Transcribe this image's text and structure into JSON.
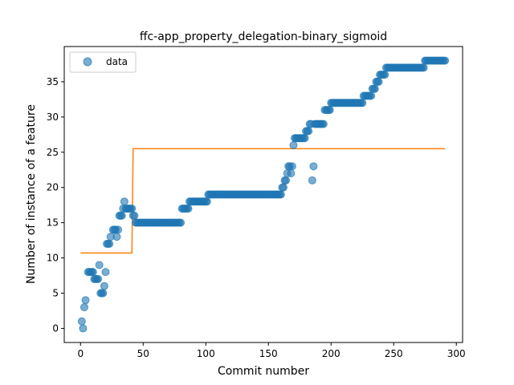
{
  "chart_data": {
    "type": "scatter",
    "title": "ffc-app_property_delegation-binary_sigmoid",
    "xlabel": "Commit number",
    "ylabel": "Number of instance of a feature",
    "xlim": [
      -13,
      305
    ],
    "ylim": [
      -2,
      40
    ],
    "xticks": [
      0,
      50,
      100,
      150,
      200,
      250,
      300
    ],
    "yticks": [
      0,
      5,
      10,
      15,
      20,
      25,
      30,
      35
    ],
    "grid": false,
    "legend": {
      "placement": "top-left",
      "entries": [
        "data"
      ]
    },
    "colors": {
      "data": "#1f77b4",
      "fit": "#ff7f0e"
    },
    "series": [
      {
        "name": "data",
        "kind": "scatter",
        "segments": [
          [
            1,
            1,
            1
          ],
          [
            2,
            2,
            0
          ],
          [
            3,
            3,
            3
          ],
          [
            4,
            4,
            4
          ],
          [
            6,
            10,
            8
          ],
          [
            11,
            14,
            7
          ],
          [
            15,
            15,
            9
          ],
          [
            16,
            18,
            5
          ],
          [
            19,
            19,
            6
          ],
          [
            20,
            20,
            8
          ],
          [
            21,
            23,
            12
          ],
          [
            24,
            24,
            13
          ],
          [
            26,
            28,
            14
          ],
          [
            29,
            29,
            13
          ],
          [
            30,
            30,
            14
          ],
          [
            31,
            33,
            16
          ],
          [
            34,
            34,
            17
          ],
          [
            35,
            35,
            18
          ],
          [
            36,
            41,
            17
          ],
          [
            42,
            43,
            16
          ],
          [
            44,
            80,
            15
          ],
          [
            81,
            86,
            17
          ],
          [
            87,
            101,
            18
          ],
          [
            102,
            160,
            19
          ],
          [
            161,
            162,
            20
          ],
          [
            163,
            164,
            21
          ],
          [
            165,
            165,
            22
          ],
          [
            166,
            167,
            23
          ],
          [
            168,
            168,
            22
          ],
          [
            169,
            169,
            23
          ],
          [
            170,
            170,
            26
          ],
          [
            171,
            179,
            27
          ],
          [
            180,
            182,
            28
          ],
          [
            183,
            184,
            29
          ],
          [
            185,
            185,
            21
          ],
          [
            186,
            186,
            23
          ],
          [
            187,
            194,
            29
          ],
          [
            195,
            199,
            31
          ],
          [
            200,
            225,
            32
          ],
          [
            226,
            232,
            33
          ],
          [
            233,
            235,
            34
          ],
          [
            236,
            238,
            35
          ],
          [
            239,
            243,
            36
          ],
          [
            244,
            274,
            37
          ],
          [
            275,
            291,
            38
          ]
        ]
      },
      {
        "name": "",
        "kind": "line",
        "x": [
          0,
          41,
          41,
          42,
          42,
          291
        ],
        "y": [
          10.7,
          10.7,
          10.7,
          25.5,
          25.5,
          25.5
        ]
      }
    ]
  }
}
